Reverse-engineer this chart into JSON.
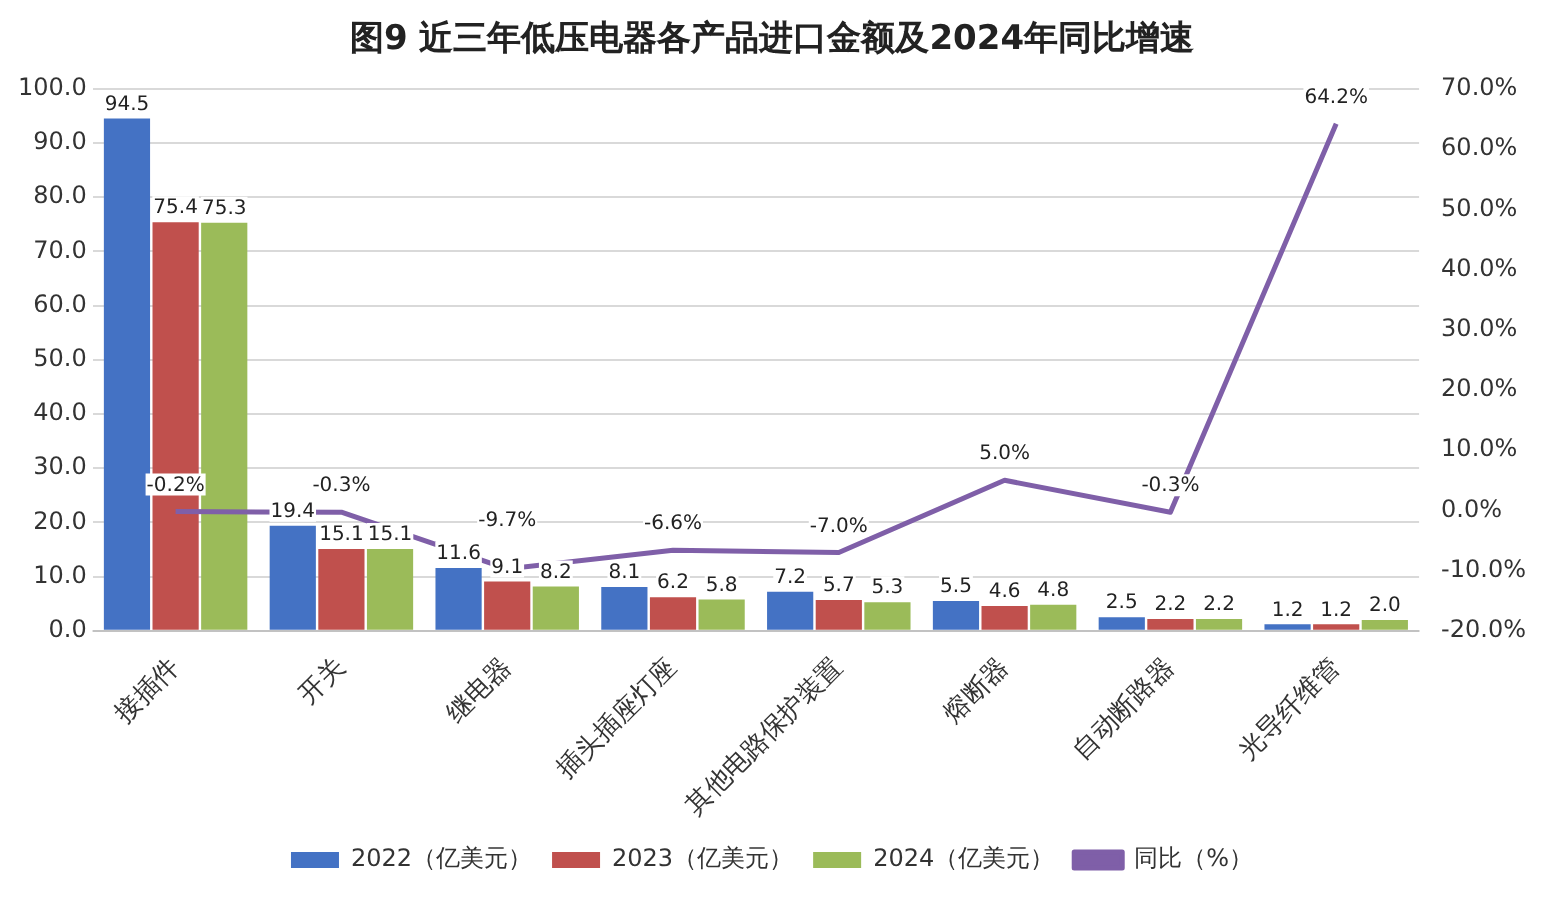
{
  "chart_data": {
    "type": "bar",
    "title": "图9 近三年低压电器各产品进口金额及2024年同比增速",
    "categories": [
      "接插件",
      "开关",
      "继电器",
      "插头插座灯座",
      "其他电路保护装置",
      "熔断器",
      "自动断路器",
      "光导纤维管"
    ],
    "series": [
      {
        "name": "2022（亿美元）",
        "color": "#4472c4",
        "values": [
          94.5,
          19.4,
          11.6,
          8.1,
          7.2,
          5.5,
          2.5,
          1.2
        ]
      },
      {
        "name": "2023（亿美元）",
        "color": "#c0504d",
        "values": [
          75.4,
          15.1,
          9.1,
          6.2,
          5.7,
          4.6,
          2.2,
          1.2
        ]
      },
      {
        "name": "2024（亿美元）",
        "color": "#9bbb59",
        "values": [
          75.3,
          15.1,
          8.2,
          5.8,
          5.3,
          4.8,
          2.2,
          2.0
        ],
        "value_labels": [
          "75.3",
          "15.1",
          "8.2",
          "5.8",
          "5.3",
          "4.8",
          "2.2",
          "2.0"
        ]
      },
      {
        "name": "同比（%）",
        "type": "line",
        "axis": "y2",
        "color": "#7f5fa8",
        "values": [
          -0.2,
          -0.3,
          -9.7,
          -6.6,
          -7.0,
          5.0,
          -0.3,
          64.2
        ],
        "value_labels": [
          "-0.2%",
          "-0.3%",
          "-9.7%",
          "-6.6%",
          "-7.0%",
          "5.0%",
          "-0.3%",
          "64.2%"
        ]
      }
    ],
    "ylim": [
      0,
      100
    ],
    "yticks": [
      {
        "value": 0,
        "label": "0.0"
      },
      {
        "value": 10,
        "label": "10.0"
      },
      {
        "value": 20,
        "label": "20.0"
      },
      {
        "value": 30,
        "label": "30.0"
      },
      {
        "value": 40,
        "label": "40.0"
      },
      {
        "value": 50,
        "label": "50.0"
      },
      {
        "value": 60,
        "label": "60.0"
      },
      {
        "value": 70,
        "label": "70.0"
      },
      {
        "value": 80,
        "label": "80.0"
      },
      {
        "value": 90,
        "label": "90.0"
      },
      {
        "value": 100,
        "label": "100.0"
      }
    ],
    "y2lim": [
      -20,
      70
    ],
    "y2ticks": [
      {
        "value": -20,
        "label": "-20.0%"
      },
      {
        "value": -10,
        "label": "-10.0%"
      },
      {
        "value": 0,
        "label": "0.0%"
      },
      {
        "value": 10,
        "label": "10.0%"
      },
      {
        "value": 20,
        "label": "20.0%"
      },
      {
        "value": 30,
        "label": "30.0%"
      },
      {
        "value": 40,
        "label": "40.0%"
      },
      {
        "value": 50,
        "label": "50.0%"
      },
      {
        "value": 60,
        "label": "60.0%"
      },
      {
        "value": 70,
        "label": "70.0%"
      }
    ],
    "data_labels": true,
    "grid": "y",
    "legend": "bottom",
    "marker": "none"
  }
}
